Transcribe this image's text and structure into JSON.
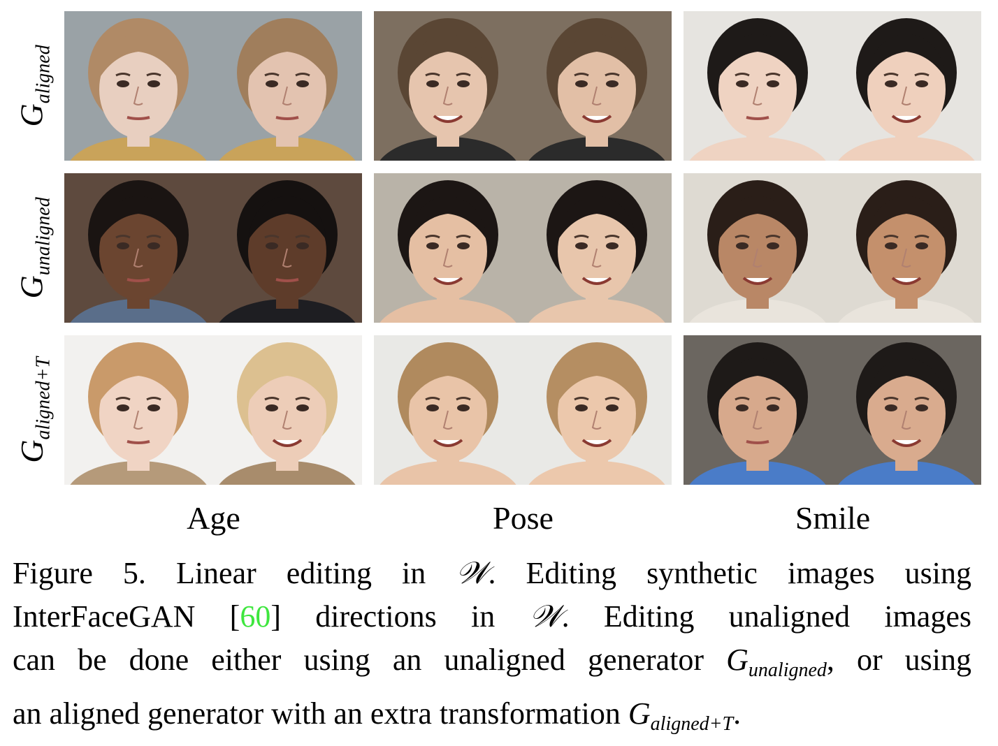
{
  "rows": [
    {
      "symbol": "G",
      "subscript": "aligned"
    },
    {
      "symbol": "G",
      "subscript": "unaligned"
    },
    {
      "symbol": "G",
      "subscript": "aligned+T"
    }
  ],
  "columns": [
    "Age",
    "Pose",
    "Smile"
  ],
  "tiles": [
    [
      {
        "bg": "#9aa2a6",
        "skin": "#e8cfc0",
        "hair": "#b08a66",
        "shirt": "#c9a35a",
        "smile": false
      },
      {
        "bg": "#9aa2a6",
        "skin": "#e3c3b0",
        "hair": "#a07e5c",
        "shirt": "#c9a35a",
        "smile": false
      },
      {
        "bg": "#7d6f60",
        "skin": "#e6c5ae",
        "hair": "#5a4634",
        "shirt": "#2b2b2b",
        "smile": true
      },
      {
        "bg": "#7d6f60",
        "skin": "#e2bfa6",
        "hair": "#5a4634",
        "shirt": "#2b2b2b",
        "smile": true
      },
      {
        "bg": "#e6e4e0",
        "skin": "#efd3c2",
        "hair": "#1e1a18",
        "shirt": "#efd3c2",
        "smile": false
      },
      {
        "bg": "#e6e4e0",
        "skin": "#efd0bd",
        "hair": "#1e1a18",
        "shirt": "#efd0bd",
        "smile": true
      }
    ],
    [
      {
        "bg": "#5e4a3e",
        "skin": "#6b4530",
        "hair": "#1a1412",
        "shirt": "#5a6e8a",
        "smile": false
      },
      {
        "bg": "#5e4a3e",
        "skin": "#5e3c2a",
        "hair": "#151110",
        "shirt": "#1e1e22",
        "smile": false
      },
      {
        "bg": "#b9b3a8",
        "skin": "#e5bfa3",
        "hair": "#1c1614",
        "shirt": "#e5bfa3",
        "smile": true
      },
      {
        "bg": "#b9b3a8",
        "skin": "#e8c6ac",
        "hair": "#1c1614",
        "shirt": "#e8c6ac",
        "smile": true
      },
      {
        "bg": "#dedad2",
        "skin": "#b98766",
        "hair": "#2a1e18",
        "shirt": "#e9e4dc",
        "smile": true
      },
      {
        "bg": "#dedad2",
        "skin": "#c4906c",
        "hair": "#2a1e18",
        "shirt": "#e9e4dc",
        "smile": true
      }
    ],
    [
      {
        "bg": "#f2f1ef",
        "skin": "#f0d4c4",
        "hair": "#c99a6a",
        "shirt": "#b59a7a",
        "smile": false
      },
      {
        "bg": "#f2f1ef",
        "skin": "#edcdb8",
        "hair": "#dcc090",
        "shirt": "#a88c6c",
        "smile": true
      },
      {
        "bg": "#e9e9e6",
        "skin": "#e9c4a8",
        "hair": "#b08a5e",
        "shirt": "#e9c4a8",
        "smile": true
      },
      {
        "bg": "#e9e9e6",
        "skin": "#ecc8ac",
        "hair": "#b58e62",
        "shirt": "#ecc8ac",
        "smile": true
      },
      {
        "bg": "#6b6660",
        "skin": "#d7a98c",
        "hair": "#1e1a18",
        "shirt": "#4a7cc8",
        "smile": false
      },
      {
        "bg": "#6b6660",
        "skin": "#d9ab8e",
        "hair": "#1e1a18",
        "shirt": "#4a7cc8",
        "smile": true
      }
    ]
  ],
  "caption": {
    "l1_a": "Figure 5.  Linear editing in ",
    "w_symbol": "𝒲",
    "l1_b": ".  Editing synthetic images using",
    "l2_a": "InterFaceGAN [",
    "cite": "60",
    "l2_b": "] directions in ",
    "l2_c": ".  Editing unaligned images",
    "l3_a": "can be done either using an unaligned generator ",
    "l3_sym": "G",
    "l3_sub": "unaligned",
    "l3_b": ", or using",
    "l4_a": "an aligned generator with an extra transformation ",
    "l4_sym": "G",
    "l4_sub": "aligned+T",
    "l4_b": "."
  },
  "colors": {
    "cite": "#3ee63e"
  }
}
